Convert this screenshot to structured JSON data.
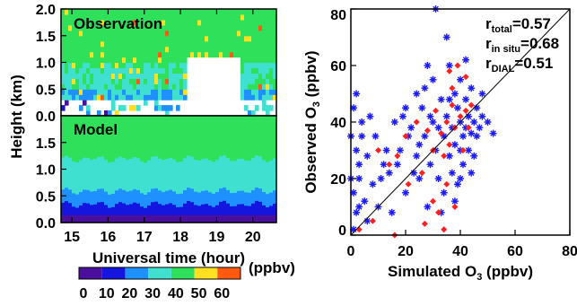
{
  "chart_data": [
    {
      "type": "heatmap",
      "panels": [
        {
          "label": "Observation"
        },
        {
          "label": "Model"
        }
      ],
      "xlabel": "Universal time (hour)",
      "ylabel": "Height (km)",
      "xlim": [
        14.7,
        20.65
      ],
      "x_ticks": [
        "15",
        "16",
        "17",
        "18",
        "19",
        "20"
      ],
      "obs_y_ticks": [
        "2.0",
        "1.5",
        "1.0",
        "0.5",
        "0.0"
      ],
      "model_y_ticks": [
        "1.5",
        "1.0",
        "0.5",
        "0.0"
      ],
      "colorbar": {
        "unit": "(ppbv)",
        "ticks": [
          "0",
          "10",
          "20",
          "30",
          "40",
          "50",
          "60"
        ],
        "colors": [
          "#4a0f9c",
          "#1515e0",
          "#1e90ff",
          "#40e0d0",
          "#2fe05a",
          "#ffe020",
          "#ff5a10"
        ]
      },
      "model_levels_km": [
        0.0,
        0.15,
        0.35,
        0.6,
        0.85,
        1.2,
        2.0
      ],
      "model_bands": [
        {
          "value": 5,
          "top_km": 0.15
        },
        {
          "value": 15,
          "top_km": 0.35
        },
        {
          "value": 25,
          "top_km": 0.6
        },
        {
          "value": 35,
          "top_km": 0.85
        },
        {
          "value": 35,
          "top_km": 1.2
        },
        {
          "value": 45,
          "top_km": 2.0
        }
      ]
    },
    {
      "type": "scatter",
      "xlabel": "Simulated O",
      "xlabel_sub": "3",
      "xlabel_unit": " (ppbv)",
      "ylabel": "Observed O",
      "ylabel_sub": "3",
      "ylabel_unit": " (ppbv)",
      "xlim": [
        0,
        80
      ],
      "ylim": [
        0,
        80
      ],
      "x_ticks": [
        "0",
        "20",
        "40",
        "60",
        "80"
      ],
      "y_ticks": [
        "0",
        "20",
        "40",
        "60",
        "80"
      ],
      "reference_line": "1:1",
      "stats": [
        {
          "r": "r",
          "sub": "total",
          "value": "=0.57",
          "color": "#000000"
        },
        {
          "r": "r",
          "sub": "in situ",
          "value": "=0.68",
          "color": "#ff2020"
        },
        {
          "r": "r",
          "sub": "DIAL",
          "value": "=0.51",
          "color": "#1a1aff"
        }
      ],
      "series": [
        {
          "name": "DIAL",
          "color": "#1a1aff",
          "marker": "asterisk",
          "points": [
            [
              1,
              2
            ],
            [
              2,
              8
            ],
            [
              1,
              15
            ],
            [
              3,
              20
            ],
            [
              2,
              30
            ],
            [
              4,
              40
            ],
            [
              1,
              45
            ],
            [
              3,
              25
            ],
            [
              5,
              12
            ],
            [
              6,
              5
            ],
            [
              2,
              50
            ],
            [
              4,
              35
            ],
            [
              8,
              18
            ],
            [
              10,
              10
            ],
            [
              12,
              25
            ],
            [
              15,
              8
            ],
            [
              18,
              30
            ],
            [
              20,
              15
            ],
            [
              22,
              38
            ],
            [
              24,
              28
            ],
            [
              25,
              20
            ],
            [
              26,
              45
            ],
            [
              27,
              35
            ],
            [
              28,
              10
            ],
            [
              29,
              25
            ],
            [
              30,
              40
            ],
            [
              30,
              55
            ],
            [
              31,
              30
            ],
            [
              32,
              20
            ],
            [
              33,
              48
            ],
            [
              34,
              35
            ],
            [
              34,
              15
            ],
            [
              35,
              42
            ],
            [
              36,
              28
            ],
            [
              36,
              60
            ],
            [
              37,
              38
            ],
            [
              37,
              22
            ],
            [
              38,
              50
            ],
            [
              38,
              32
            ],
            [
              39,
              45
            ],
            [
              39,
              18
            ],
            [
              40,
              40
            ],
            [
              40,
              30
            ],
            [
              40,
              55
            ],
            [
              41,
              35
            ],
            [
              41,
              25
            ],
            [
              42,
              48
            ],
            [
              42,
              38
            ],
            [
              43,
              42
            ],
            [
              43,
              30
            ],
            [
              44,
              52
            ],
            [
              44,
              36
            ],
            [
              45,
              40
            ],
            [
              45,
              28
            ],
            [
              46,
              45
            ],
            [
              46,
              35
            ],
            [
              47,
              38
            ],
            [
              48,
              50
            ],
            [
              48,
              42
            ],
            [
              50,
              40
            ],
            [
              52,
              36
            ],
            [
              38,
              12
            ],
            [
              33,
              8
            ],
            [
              28,
              60
            ],
            [
              42,
              62
            ],
            [
              35,
              70
            ],
            [
              31,
              80
            ],
            [
              20,
              45
            ],
            [
              16,
              40
            ],
            [
              14,
              22
            ],
            [
              24,
              50
            ],
            [
              6,
              28
            ],
            [
              9,
              35
            ],
            [
              40,
              20
            ],
            [
              44,
              22
            ],
            [
              36,
              48
            ],
            [
              32,
              38
            ],
            [
              29,
              42
            ],
            [
              27,
              52
            ],
            [
              25,
              32
            ],
            [
              23,
              22
            ],
            [
              21,
              35
            ],
            [
              19,
              42
            ],
            [
              17,
              25
            ],
            [
              13,
              30
            ],
            [
              11,
              20
            ],
            [
              7,
              42
            ],
            [
              3,
              10
            ],
            [
              0,
              20
            ],
            [
              0,
              35
            ]
          ]
        },
        {
          "name": "in situ",
          "color": "#ff2020",
          "marker": "diamond",
          "points": [
            [
              3,
              2
            ],
            [
              8,
              5
            ],
            [
              10,
              30
            ],
            [
              14,
              25
            ],
            [
              17,
              28
            ],
            [
              20,
              35
            ],
            [
              21,
              18
            ],
            [
              24,
              40
            ],
            [
              26,
              22
            ],
            [
              28,
              37
            ],
            [
              30,
              30
            ],
            [
              30,
              12
            ],
            [
              31,
              44
            ],
            [
              32,
              8
            ],
            [
              33,
              36
            ],
            [
              34,
              28
            ],
            [
              35,
              18
            ],
            [
              35,
              40
            ],
            [
              36,
              32
            ],
            [
              37,
              52
            ],
            [
              37,
              46
            ],
            [
              38,
              38
            ],
            [
              39,
              60
            ],
            [
              40,
              42
            ],
            [
              41,
              30
            ],
            [
              42,
              44
            ],
            [
              43,
              38
            ],
            [
              44,
              46
            ],
            [
              38,
              10
            ],
            [
              34,
              2
            ],
            [
              27,
              4
            ],
            [
              16,
              0
            ],
            [
              42,
              56
            ],
            [
              36,
              58
            ]
          ]
        }
      ]
    }
  ]
}
